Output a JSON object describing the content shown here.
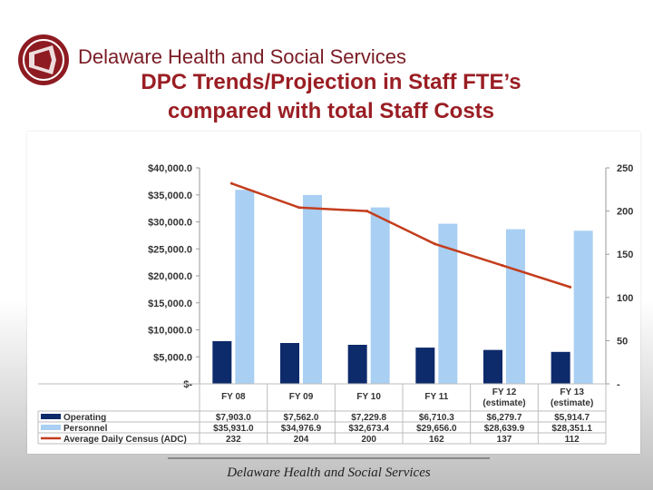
{
  "header": {
    "org_name": "Delaware Health and Social Services",
    "title_line1": "DPC Trends/Projection in Staff FTE’s",
    "title_line2": "compared with total Staff Costs"
  },
  "footer": {
    "text": "Delaware Health and Social Services"
  },
  "colors": {
    "operating": "#0d2a6b",
    "personnel": "#a9cff3",
    "adc": "#c43d1e",
    "title": "#9a1e24",
    "logo": "#8e1b22"
  },
  "chart_data": {
    "type": "bar",
    "categories": [
      [
        "FY 08"
      ],
      [
        "FY 09"
      ],
      [
        "FY 10"
      ],
      [
        "FY 11"
      ],
      [
        "FY 12",
        "(estimate)"
      ],
      [
        "FY 13",
        "(estimate)"
      ]
    ],
    "series": [
      {
        "name": "Operating",
        "type": "bar",
        "axis": "left",
        "values": [
          7903.0,
          7562.0,
          7229.8,
          6710.3,
          6279.7,
          5914.7
        ],
        "labels": [
          "$7,903.0",
          "$7,562.0",
          "$7,229.8",
          "$6,710.3",
          "$6,279.7",
          "$5,914.7"
        ]
      },
      {
        "name": "Personnel",
        "type": "bar",
        "axis": "left",
        "values": [
          35931.0,
          34976.9,
          32673.4,
          29656.0,
          28639.9,
          28351.1
        ],
        "labels": [
          "$35,931.0",
          "$34,976.9",
          "$32,673.4",
          "$29,656.0",
          "$28,639.9",
          "$28,351.1"
        ]
      },
      {
        "name": "Average Daily Census (ADC)",
        "type": "line",
        "axis": "right",
        "values": [
          232,
          204,
          200,
          162,
          137,
          112
        ],
        "labels": [
          "232",
          "204",
          "200",
          "162",
          "137",
          "112"
        ]
      }
    ],
    "y_left": {
      "min": 0,
      "max": 40000,
      "ticks": [
        40000,
        35000,
        30000,
        25000,
        20000,
        15000,
        10000,
        5000,
        0
      ],
      "tick_labels": [
        "$40,000.0",
        "$35,000.0",
        "$30,000.0",
        "$25,000.0",
        "$20,000.0",
        "$15,000.0",
        "$10,000.0",
        "$5,000.0",
        "$-"
      ]
    },
    "y_right": {
      "min": 0,
      "max": 250,
      "ticks": [
        250,
        200,
        150,
        100,
        50,
        0
      ],
      "tick_labels": [
        "250",
        "200",
        "150",
        "100",
        "50",
        "-"
      ]
    },
    "grid": false,
    "legend": "data-table"
  }
}
